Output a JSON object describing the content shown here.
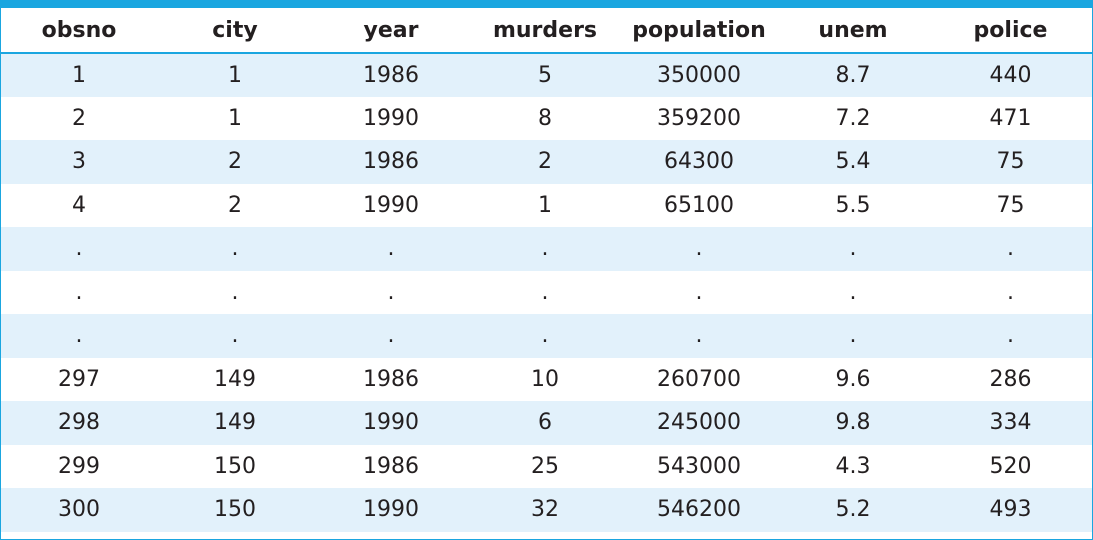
{
  "colors": {
    "accent": "#1aa6e0",
    "band": "#e2f1fb",
    "text": "#231f20"
  },
  "table": {
    "headers": [
      "obsno",
      "city",
      "year",
      "murders",
      "population",
      "unem",
      "police"
    ],
    "rows": [
      [
        "1",
        "1",
        "1986",
        "5",
        "350000",
        "8.7",
        "440"
      ],
      [
        "2",
        "1",
        "1990",
        "8",
        "359200",
        "7.2",
        "471"
      ],
      [
        "3",
        "2",
        "1986",
        "2",
        "64300",
        "5.4",
        "75"
      ],
      [
        "4",
        "2",
        "1990",
        "1",
        "65100",
        "5.5",
        "75"
      ],
      [
        ".",
        ".",
        ".",
        ".",
        ".",
        ".",
        "."
      ],
      [
        ".",
        ".",
        ".",
        ".",
        ".",
        ".",
        "."
      ],
      [
        ".",
        ".",
        ".",
        ".",
        ".",
        ".",
        "."
      ],
      [
        "297",
        "149",
        "1986",
        "10",
        "260700",
        "9.6",
        "286"
      ],
      [
        "298",
        "149",
        "1990",
        "6",
        "245000",
        "9.8",
        "334"
      ],
      [
        "299",
        "150",
        "1986",
        "25",
        "543000",
        "4.3",
        "520"
      ],
      [
        "300",
        "150",
        "1990",
        "32",
        "546200",
        "5.2",
        "493"
      ]
    ]
  }
}
